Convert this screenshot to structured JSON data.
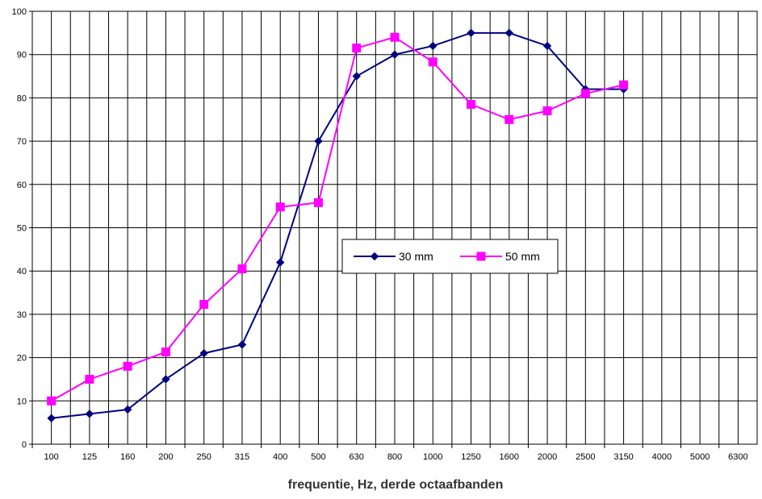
{
  "chart_data": {
    "type": "line",
    "title": "",
    "xlabel": "frequentie, Hz, derde octaafbanden",
    "ylabel": "",
    "categories": [
      "100",
      "125",
      "160",
      "200",
      "250",
      "315",
      "400",
      "500",
      "630",
      "800",
      "1000",
      "1250",
      "1600",
      "2000",
      "2500",
      "3150",
      "4000",
      "5000",
      "6300"
    ],
    "ylim": [
      0,
      100
    ],
    "yticks": [
      0,
      10,
      20,
      30,
      40,
      50,
      60,
      70,
      80,
      90,
      100
    ],
    "grid": true,
    "legend_position": "center",
    "series": [
      {
        "name": "30 mm",
        "color": "#000080",
        "marker": "diamond",
        "values": [
          6,
          7,
          8,
          15,
          21,
          23,
          42,
          70,
          85,
          90,
          92,
          95,
          95,
          92,
          82,
          82,
          null,
          null,
          null
        ]
      },
      {
        "name": "50 mm",
        "color": "#ff00ff",
        "marker": "square",
        "values": [
          10,
          15,
          18,
          21.3,
          32.3,
          40.5,
          54.8,
          55.8,
          91.5,
          94,
          88.3,
          78.5,
          75,
          77,
          81,
          83,
          null,
          null,
          null
        ]
      }
    ]
  }
}
